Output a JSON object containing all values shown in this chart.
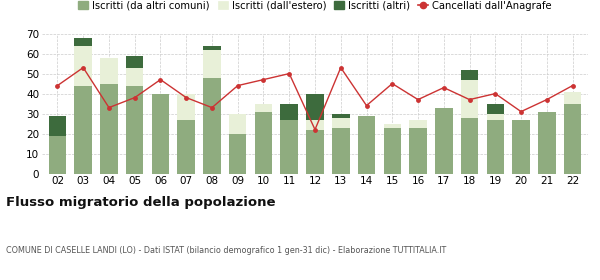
{
  "years": [
    "02",
    "03",
    "04",
    "05",
    "06",
    "07",
    "08",
    "09",
    "10",
    "11",
    "12",
    "13",
    "14",
    "15",
    "16",
    "17",
    "18",
    "19",
    "20",
    "21",
    "22"
  ],
  "iscritti_comuni": [
    19,
    44,
    45,
    44,
    40,
    27,
    48,
    20,
    31,
    27,
    22,
    23,
    29,
    23,
    23,
    33,
    28,
    27,
    27,
    31,
    35
  ],
  "iscritti_estero": [
    0,
    20,
    13,
    9,
    0,
    13,
    14,
    10,
    4,
    0,
    5,
    5,
    0,
    2,
    4,
    0,
    19,
    3,
    0,
    0,
    6
  ],
  "iscritti_altri": [
    10,
    4,
    0,
    6,
    0,
    0,
    2,
    0,
    0,
    8,
    13,
    2,
    0,
    0,
    0,
    0,
    5,
    5,
    0,
    0,
    0
  ],
  "cancellati": [
    44,
    53,
    33,
    38,
    47,
    38,
    33,
    44,
    47,
    50,
    22,
    53,
    34,
    45,
    37,
    43,
    37,
    40,
    31,
    37,
    44
  ],
  "color_comuni": "#8fac7f",
  "color_estero": "#e8f0d8",
  "color_altri": "#3d6b3d",
  "color_cancellati": "#cc3333",
  "title": "Flusso migratorio della popolazione",
  "subtitle": "COMUNE DI CASELLE LANDI (LO) - Dati ISTAT (bilancio demografico 1 gen-31 dic) - Elaborazione TUTTITALIA.IT",
  "legend_labels": [
    "Iscritti (da altri comuni)",
    "Iscritti (dall'estero)",
    "Iscritti (altri)",
    "Cancellati dall'Anagrafe"
  ],
  "ylim": [
    0,
    70
  ],
  "yticks": [
    0,
    10,
    20,
    30,
    40,
    50,
    60,
    70
  ],
  "bg_color": "#ffffff"
}
